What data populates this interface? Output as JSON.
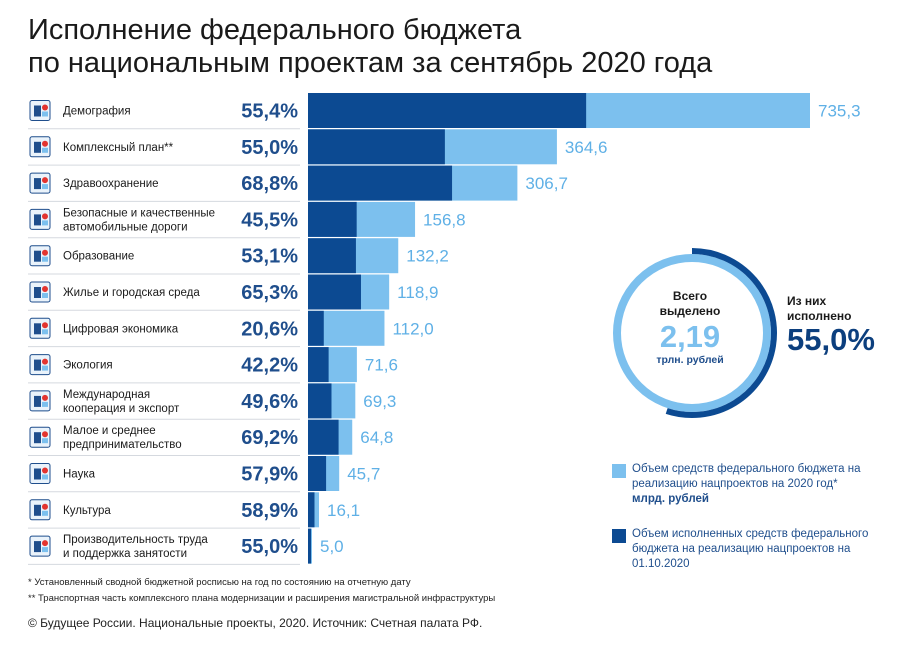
{
  "title_lines": [
    "Исполнение федерального бюджета",
    "по национальным проектам за сентябрь 2020 года"
  ],
  "colors": {
    "planned": "#7cc0ee",
    "executed": "#0c4a92",
    "pct_text": "#1f4e8c",
    "value_text": "#5fb0e6"
  },
  "chart_data": {
    "type": "bar",
    "orientation": "horizontal",
    "categories": [
      "Демография",
      "Комплексный план**",
      "Здравоохранение",
      "Безопасные и качественные автомобильные дороги",
      "Образование",
      "Жилье и городская среда",
      "Цифровая экономика",
      "Экология",
      "Международная кооперация и экспорт",
      "Малое и среднее предпринимательство",
      "Наука",
      "Культура",
      "Производительность труда и поддержка занятости"
    ],
    "label_lines": [
      [
        "Демография"
      ],
      [
        "Комплексный план**"
      ],
      [
        "Здравоохранение"
      ],
      [
        "Безопасные и качественные",
        "автомобильные дороги"
      ],
      [
        "Образование"
      ],
      [
        "Жилье и городская среда"
      ],
      [
        "Цифровая экономика"
      ],
      [
        "Экология"
      ],
      [
        "Международная",
        "кооперация и экспорт"
      ],
      [
        "Малое и среднее",
        "предпринимательство"
      ],
      [
        "Наука"
      ],
      [
        "Культура"
      ],
      [
        "Производительность труда",
        "и поддержка занятости"
      ]
    ],
    "icons": [
      "family-icon",
      "highway-icon",
      "health-cross-icon",
      "road-city-icon",
      "book-icon",
      "house-icon",
      "digital-icon",
      "plant-icon",
      "globe-arrow-icon",
      "rocket-icon",
      "science-hands-icon",
      "culture-mask-icon",
      "productivity-arrow-icon"
    ],
    "series": [
      {
        "name": "Объем средств федерального бюджета на реализацию нацпроектов на 2020 год*",
        "values": [
          735.3,
          364.6,
          306.7,
          156.8,
          132.2,
          118.9,
          112.0,
          71.6,
          69.3,
          64.8,
          45.7,
          16.1,
          5.0
        ]
      },
      {
        "name": "Объем исполненных средств федерального бюджета на реализацию нацпроектов на 01.10.2020",
        "values": [
          407.4,
          200.5,
          211.0,
          71.3,
          70.2,
          77.6,
          23.1,
          30.2,
          34.4,
          44.8,
          26.5,
          9.5,
          2.8
        ]
      }
    ],
    "value_labels": [
      "735,3",
      "364,6",
      "306,7",
      "156,8",
      "132,2",
      "118,9",
      "112,0",
      "71,6",
      "69,3",
      "64,8",
      "45,7",
      "16,1",
      "5,0"
    ],
    "percent_labels": [
      "55,4%",
      "55,0%",
      "68,8%",
      "45,5%",
      "53,1%",
      "65,3%",
      "20,6%",
      "42,2%",
      "49,6%",
      "69,2%",
      "57,9%",
      "58,9%",
      "55,0%"
    ],
    "xlim": [
      0,
      735.3
    ]
  },
  "donut": {
    "total_label_lines": [
      "Всего",
      "выделено"
    ],
    "total_value": "2,19",
    "total_unit": "трлн. рублей",
    "executed_label_lines": [
      "Из них",
      "исполнено"
    ],
    "executed_value": "55,0%",
    "executed_fraction": 0.55
  },
  "legend": {
    "planned_text": "Объем средств федерального бюджета на реализацию нацпроектов на 2020 год*",
    "planned_unit": "млрд. рублей",
    "executed_text": "Объем исполненных средств федерального бюджета на реализацию нацпроектов на 01.10.2020"
  },
  "footnotes": [
    "* Установленный сводной бюджетной росписью на год по состоянию на отчетную дату",
    "** Транспортная часть комплексного плана модернизации и расширения магистральной инфраструктуры"
  ],
  "source": "© Будущее России. Национальные проекты, 2020. Источник: Счетная палата РФ."
}
